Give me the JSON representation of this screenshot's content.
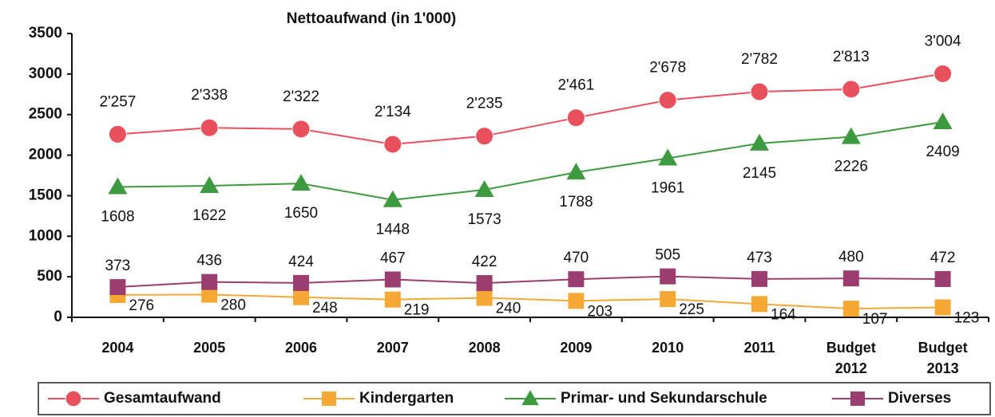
{
  "chart_data": {
    "type": "line",
    "title": "Nettoaufwand (in 1'000)",
    "categories": [
      "2004",
      "2005",
      "2006",
      "2007",
      "2008",
      "2009",
      "2010",
      "2011",
      "Budget 2012",
      "Budget 2013"
    ],
    "ylim": [
      0,
      3500
    ],
    "yticks": [
      0,
      500,
      1000,
      1500,
      2000,
      2500,
      3000,
      3500
    ],
    "grid": false,
    "legend": "bottom",
    "series": [
      {
        "name": "Gesamtaufwand",
        "color": "#e8505b",
        "marker": "circle",
        "label_position": "above",
        "values": [
          2257,
          2338,
          2322,
          2134,
          2235,
          2461,
          2678,
          2782,
          2813,
          3004
        ],
        "value_labels": [
          "2'257",
          "2'338",
          "2'322",
          "2'134",
          "2'235",
          "2'461",
          "2'678",
          "2'782",
          "2'813",
          "3'004"
        ]
      },
      {
        "name": "Kindergarten",
        "color": "#f5a833",
        "marker": "square",
        "label_position": "right",
        "values": [
          276,
          280,
          248,
          219,
          240,
          203,
          225,
          164,
          107,
          123
        ]
      },
      {
        "name": "Primar- und Sekundarschule",
        "color": "#3e9a3e",
        "marker": "triangle",
        "label_position": "below",
        "values": [
          1608,
          1622,
          1650,
          1448,
          1573,
          1788,
          1961,
          2145,
          2226,
          2409
        ]
      },
      {
        "name": "Diverses",
        "color": "#9b3d6e",
        "marker": "square",
        "label_position": "above",
        "values": [
          373,
          436,
          424,
          467,
          422,
          470,
          505,
          473,
          480,
          472
        ]
      }
    ]
  }
}
